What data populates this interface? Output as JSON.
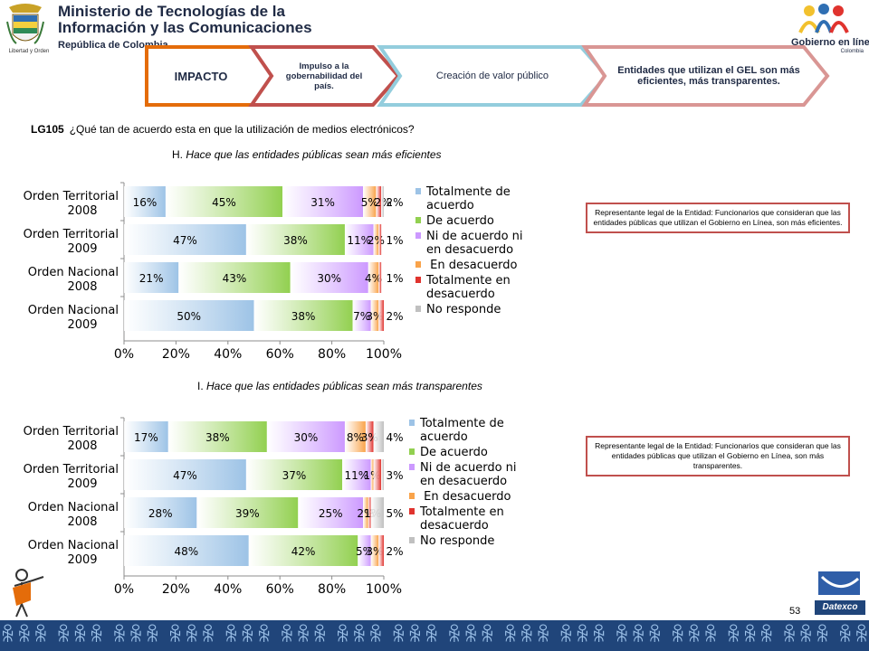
{
  "header": {
    "ministry_line1": "Ministerio de Tecnologías de la",
    "ministry_line2": "Información y las Comunicaciones",
    "ministry_sub": "República de Colombia",
    "emblem_caption": "Libertad y Orden",
    "gel_name": "Gobierno en línea",
    "gel_country": "Colombia"
  },
  "chevrons": [
    {
      "label": "IMPACTO",
      "color": "#e46c0a"
    },
    {
      "label": "Impulso a la gobernabilidad del país.",
      "color": "#c0504d"
    },
    {
      "label": "Creación de valor público",
      "color": "#93cddd"
    },
    {
      "label": "Entidades que utilizan el GEL son más eficientes, más transparentes.",
      "color": "#d99694"
    }
  ],
  "question": {
    "code": "LG105",
    "text": "¿Qué  tan de acuerdo esta en que la utilización de medios electrónicos?"
  },
  "notes": [
    "Representante legal de la Entidad: Funcionarios que consideran que las entidades públicas que utilizan el Gobierno en Línea, son más eficientes.",
    "Representante legal de la Entidad: Funcionarios que consideran que las entidades públicas que utilizan el Gobierno en Línea, son más transparentes."
  ],
  "page_number": "53",
  "footer_brand": "Datexco",
  "colors": {
    "totalmente_de_acuerdo": "#9dc3e6",
    "de_acuerdo": "#92d050",
    "ni_de_acuerdo": "#cc99ff",
    "en_desacuerdo": "#f9a34a",
    "totalmente_en_desacuerdo": "#e0332e",
    "no_responde": "#c0c0c0",
    "note_border": "#c0504d"
  },
  "chart_data": [
    {
      "type": "bar",
      "orientation": "horizontal-stacked-100",
      "title_letter": "H.",
      "title": "Hace que las entidades públicas sean más eficientes",
      "categories": [
        [
          "Orden Territorial",
          "2008"
        ],
        [
          "Orden Territorial",
          "2009"
        ],
        [
          "Orden Nacional",
          "2008"
        ],
        [
          "Orden Nacional",
          "2009"
        ]
      ],
      "series": [
        {
          "name": "Totalmente  de acuerdo",
          "values": [
            16,
            47,
            21,
            50
          ]
        },
        {
          "name": "De acuerdo",
          "values": [
            45,
            38,
            43,
            38
          ]
        },
        {
          "name": "Ni de acuerdo  ni en desacuerdo",
          "values": [
            31,
            11,
            30,
            7
          ]
        },
        {
          "name": " En desacuerdo",
          "values": [
            5,
            2,
            4,
            3
          ]
        },
        {
          "name": "Totalmente en desacuerdo",
          "values": [
            2,
            1,
            1,
            2
          ]
        },
        {
          "name": "No responde",
          "values": [
            2,
            0,
            0,
            0
          ]
        }
      ],
      "data_labels": [
        [
          "16%",
          "45%",
          "31%",
          "5%",
          "2%",
          "2%"
        ],
        [
          "47%",
          "38%",
          "11%",
          "2%",
          "1%",
          ""
        ],
        [
          "21%",
          "43%",
          "30%",
          "4%",
          "1%",
          ""
        ],
        [
          "50%",
          "38%",
          "7%",
          "3%",
          "2%",
          ""
        ]
      ],
      "x_ticks": [
        "0%",
        "20%",
        "40%",
        "60%",
        "80%",
        "100%"
      ],
      "xlim": [
        0,
        100
      ],
      "legend_position": "right"
    },
    {
      "type": "bar",
      "orientation": "horizontal-stacked-100",
      "title_letter": "I.",
      "title": "Hace que las entidades públicas sean más transparentes",
      "categories": [
        [
          "Orden Territorial",
          "2008"
        ],
        [
          "Orden Territorial",
          "2009"
        ],
        [
          "Orden Nacional",
          "2008"
        ],
        [
          "Orden Nacional",
          "2009"
        ]
      ],
      "series": [
        {
          "name": "Totalmente  de acuerdo",
          "values": [
            17,
            47,
            28,
            48
          ]
        },
        {
          "name": "De acuerdo",
          "values": [
            38,
            37,
            39,
            42
          ]
        },
        {
          "name": "Ni de acuerdo  ni en desacuerdo",
          "values": [
            30,
            11,
            25,
            5
          ]
        },
        {
          "name": " En desacuerdo",
          "values": [
            8,
            1,
            2,
            3
          ]
        },
        {
          "name": "Totalmente en desacuerdo",
          "values": [
            3,
            3,
            1,
            2
          ]
        },
        {
          "name": "No responde",
          "values": [
            4,
            1,
            5,
            0
          ]
        }
      ],
      "data_labels": [
        [
          "17%",
          "38%",
          "30%",
          "8%",
          "3%",
          "4%"
        ],
        [
          "47%",
          "37%",
          "11%",
          "1%",
          "3%",
          ""
        ],
        [
          "28%",
          "39%",
          "25%",
          "2%",
          "1%",
          "5%"
        ],
        [
          "48%",
          "42%",
          "5%",
          "3%",
          "2%",
          ""
        ]
      ],
      "x_ticks": [
        "0%",
        "20%",
        "40%",
        "60%",
        "80%",
        "100%"
      ],
      "xlim": [
        0,
        100
      ],
      "legend_position": "right"
    }
  ]
}
